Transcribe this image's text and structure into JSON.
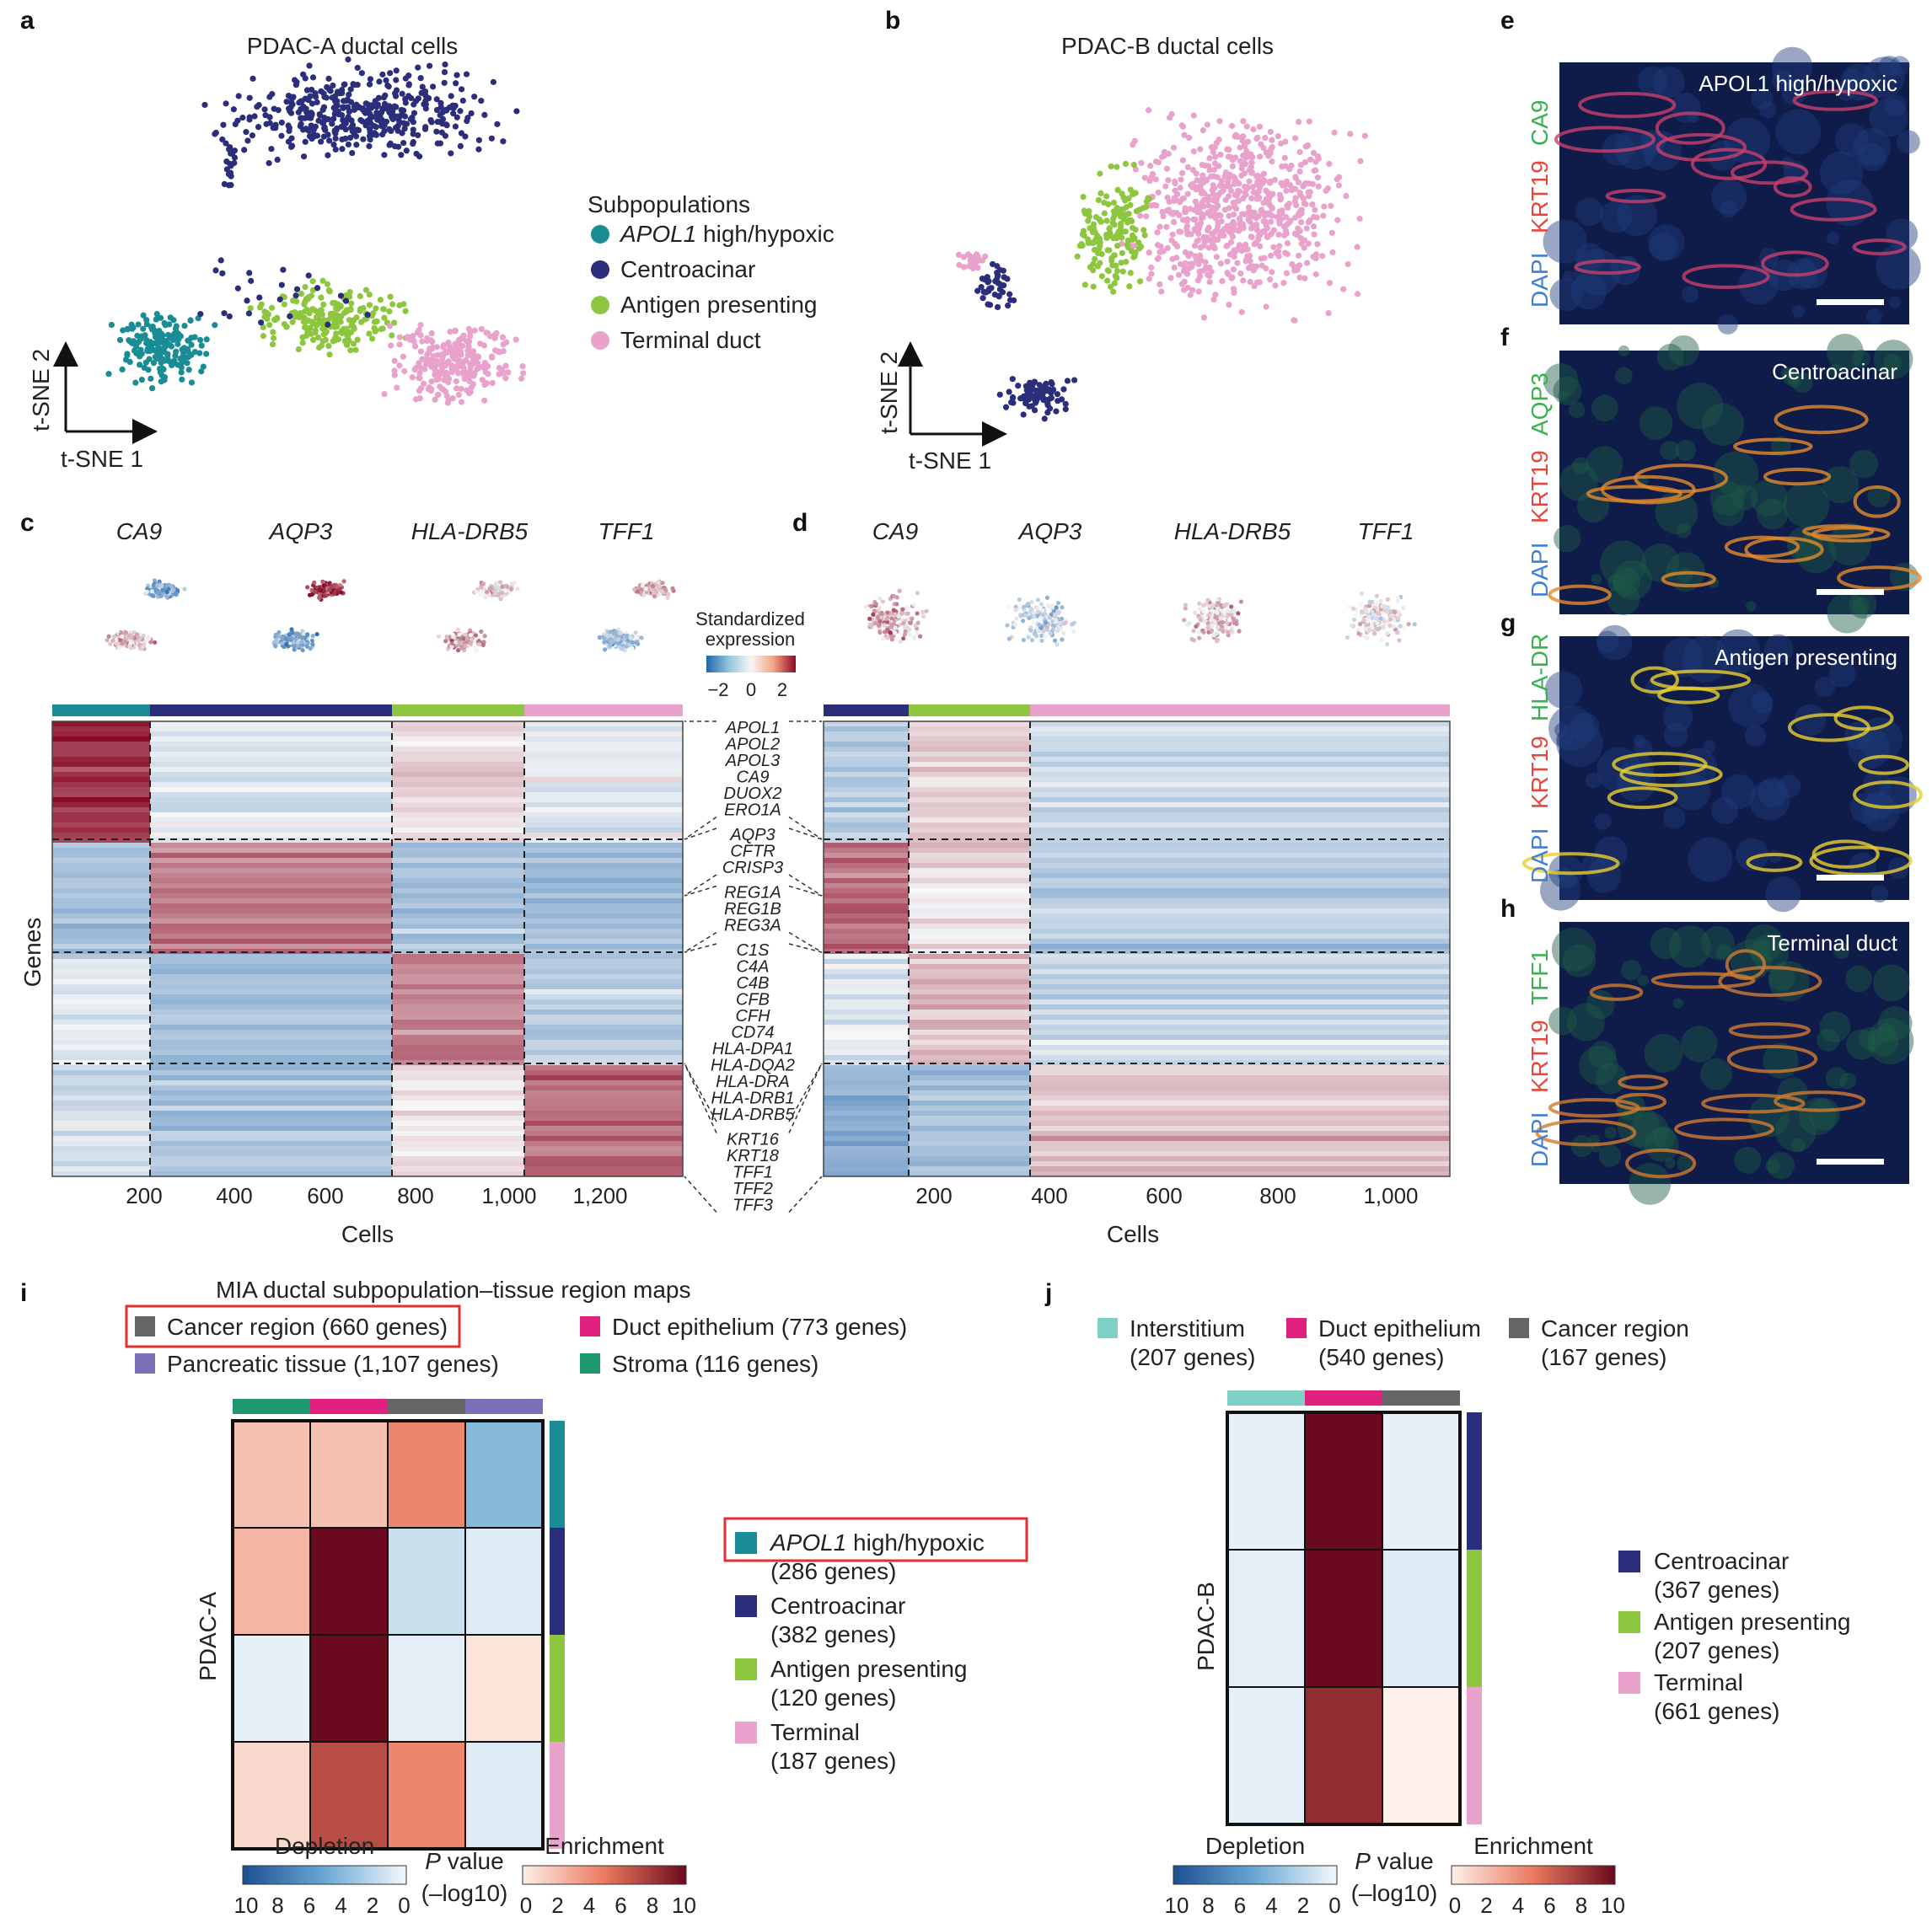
{
  "colors": {
    "apol1": "#1a8c96",
    "centroacinar": "#2b2e7a",
    "antigen": "#8dc63f",
    "terminal": "#e8a2cc",
    "cancer_region": "#666666",
    "duct_epithelium": "#e0207f",
    "pancreatic_tissue": "#7b6fb8",
    "stroma": "#1f9a6e",
    "interstitium": "#80d1c5",
    "highlight_box": "#e23030"
  },
  "panel_letters": {
    "a": "a",
    "b": "b",
    "c": "c",
    "d": "d",
    "e": "e",
    "f": "f",
    "g": "g",
    "h": "h",
    "i": "i",
    "j": "j"
  },
  "panel_a": {
    "title": "PDAC-A ductal cells",
    "xaxis": "t-SNE 1",
    "yaxis": "t-SNE 2",
    "legend_title": "Subpopulations",
    "legend": [
      {
        "label": "APOL1",
        "suffix": " high/hypoxic",
        "color": "#1a8c96"
      },
      {
        "label": "Centroacinar",
        "suffix": "",
        "color": "#2b2e7a"
      },
      {
        "label": "Antigen presenting",
        "suffix": "",
        "color": "#8dc63f"
      },
      {
        "label": "Terminal duct",
        "suffix": "",
        "color": "#e8a2cc"
      }
    ]
  },
  "panel_b": {
    "title": "PDAC-B ductal cells",
    "xaxis": "t-SNE 1",
    "yaxis": "t-SNE 2"
  },
  "panel_c": {
    "genes": [
      "CA9",
      "AQP3",
      "HLA-DRB5",
      "TFF1"
    ],
    "colorbar_title_1": "Standardized",
    "colorbar_title_2": "expression",
    "colorbar_ticks": [
      "−2",
      "0",
      "2"
    ],
    "ylabel": "Genes",
    "xlabel": "Cells",
    "xticks": [
      "200",
      "400",
      "600",
      "800",
      "1,000",
      "1,200"
    ]
  },
  "panel_d": {
    "genes": [
      "CA9",
      "AQP3",
      "HLA-DRB5",
      "TFF1"
    ],
    "xlabel": "Cells",
    "xticks": [
      "200",
      "400",
      "600",
      "800",
      "1,000"
    ]
  },
  "gene_labels": [
    "APOL1",
    "APOL2",
    "APOL3",
    "CA9",
    "DUOX2",
    "ERO1A",
    "AQP3",
    "CFTR",
    "CRISP3",
    "REG1A",
    "REG1B",
    "REG3A",
    "C1S",
    "C4A",
    "C4B",
    "CFB",
    "CFH",
    "CD74",
    "HLA-DPA1",
    "HLA-DQA2",
    "HLA-DRA",
    "HLA-DRB1",
    "HLA-DRB5",
    "KRT16",
    "KRT18",
    "TFF1",
    "TFF2",
    "TFF3"
  ],
  "microscopy": [
    {
      "panel": "e",
      "title": "APOL1 high/hypoxic",
      "stains": [
        "CA9",
        "KRT19",
        "DAPI"
      ]
    },
    {
      "panel": "f",
      "title": "Centroacinar",
      "stains": [
        "AQP3",
        "KRT19",
        "DAPI"
      ]
    },
    {
      "panel": "g",
      "title": "Antigen presenting",
      "stains": [
        "HLA-DR",
        "KRT19",
        "DAPI"
      ]
    },
    {
      "panel": "h",
      "title": "Terminal duct",
      "stains": [
        "TFF1",
        "KRT19",
        "DAPI"
      ]
    }
  ],
  "panel_i": {
    "title": "MIA ductal subpopulation–tissue region maps",
    "col_legend": [
      {
        "label": "Cancer region (660 genes)",
        "color": "#666666",
        "highlight": true
      },
      {
        "label": "Duct epithelium (773 genes)",
        "color": "#e0207f",
        "highlight": false
      },
      {
        "label": "Pancreatic tissue (1,107 genes)",
        "color": "#7b6fb8",
        "highlight": false
      },
      {
        "label": "Stroma (116 genes)",
        "color": "#1f9a6e",
        "highlight": false
      }
    ],
    "ylabel": "PDAC-A",
    "row_legend": [
      {
        "label": "APOL1",
        "suffix": " high/hypoxic",
        "line2": "(286 genes)",
        "color": "#1a8c96"
      },
      {
        "label": "Centroacinar",
        "suffix": "",
        "line2": "(382 genes)",
        "color": "#2b2e7a"
      },
      {
        "label": "Antigen presenting",
        "suffix": "",
        "line2": "(120 genes)",
        "color": "#8dc63f"
      },
      {
        "label": "Terminal",
        "suffix": "",
        "line2": "(187 genes)",
        "color": "#e8a2cc"
      }
    ],
    "depletion": "Depletion",
    "enrichment": "Enrichment",
    "pvalue": "P value",
    "pvalue_unit": "(–log10)",
    "dep_ticks": [
      "10",
      "8",
      "6",
      "4",
      "2",
      "0"
    ],
    "enr_ticks": [
      "0",
      "2",
      "4",
      "6",
      "8",
      "10"
    ]
  },
  "panel_j": {
    "col_legend": [
      {
        "line1": "Interstitium",
        "line2": "(207 genes)",
        "color": "#80d1c5"
      },
      {
        "line1": "Duct epithelium",
        "line2": "(540 genes)",
        "color": "#e0207f"
      },
      {
        "line1": "Cancer region",
        "line2": "(167 genes)",
        "color": "#666666"
      }
    ],
    "ylabel": "PDAC-B",
    "row_legend": [
      {
        "line1": "Centroacinar",
        "line2": "(367 genes)",
        "color": "#2b2e7a"
      },
      {
        "line1": "Antigen presenting",
        "line2": "(207 genes)",
        "color": "#8dc63f"
      },
      {
        "line1": "Terminal",
        "line2": "(661 genes)",
        "color": "#e8a2cc"
      }
    ],
    "depletion": "Depletion",
    "enrichment": "Enrichment",
    "pvalue": "P value",
    "pvalue_unit": "(–log10)",
    "dep_ticks": [
      "10",
      "8",
      "6",
      "4",
      "2",
      "0"
    ],
    "enr_ticks": [
      "0",
      "2",
      "4",
      "6",
      "8",
      "10"
    ]
  },
  "chart_data": [
    {
      "type": "heatmap",
      "title": "MIA ductal subpopulation–tissue region maps",
      "columns": [
        "Stroma",
        "Duct epithelium",
        "Cancer region",
        "Pancreatic tissue"
      ],
      "rows": [
        "APOL1 high/hypoxic",
        "Centroacinar",
        "Antigen presenting",
        "Terminal"
      ],
      "ylabel": "PDAC-A",
      "values": [
        [
          2,
          2,
          4.5,
          -4
        ],
        [
          2.5,
          10,
          -1.5,
          -0.8
        ],
        [
          -0.5,
          10,
          -0.6,
          0.5
        ],
        [
          1,
          7,
          4.5,
          -0.8
        ]
      ],
      "scale": [
        -10,
        10
      ]
    },
    {
      "type": "heatmap",
      "columns": [
        "Interstitium",
        "Duct epithelium",
        "Cancer region"
      ],
      "rows": [
        "Centroacinar",
        "Antigen presenting",
        "Terminal"
      ],
      "ylabel": "PDAC-B",
      "values": [
        [
          -0.5,
          10,
          -0.5
        ],
        [
          -0.6,
          10,
          -0.8
        ],
        [
          -0.5,
          8.5,
          0
        ]
      ],
      "scale": [
        -10,
        10
      ]
    }
  ]
}
